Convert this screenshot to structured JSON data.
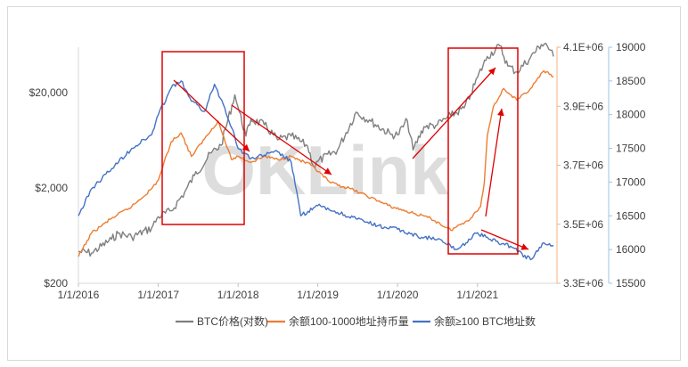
{
  "chart_data": {
    "type": "line",
    "x_ticks": [
      "1/1/2016",
      "1/1/2017",
      "1/1/2018",
      "1/1/2019",
      "1/1/2020",
      "1/1/2021"
    ],
    "axes": {
      "price": {
        "side": "left",
        "scale": "log",
        "range": [
          200,
          60000
        ],
        "tick_labels": [
          "$200",
          "$2,000",
          "$20,000"
        ]
      },
      "holdings": {
        "side": "right-inner",
        "range": [
          3300000,
          4100000
        ],
        "color": "#f4b183",
        "tick_labels": [
          "3.3E+06",
          "3.5E+06",
          "3.7E+06",
          "3.9E+06",
          "4.1E+06"
        ]
      },
      "address_count": {
        "side": "right-outer",
        "range": [
          15500,
          19000
        ],
        "color": "#9dc3e6",
        "tick_labels": [
          "15500",
          "16000",
          "16500",
          "17000",
          "17500",
          "18000",
          "18500",
          "19000"
        ]
      }
    },
    "series": [
      {
        "name": "BTC价格(对数)",
        "axis": "price",
        "color": "#7f7f7f",
        "points": [
          [
            "2016-01-01",
            430
          ],
          [
            "2016-03-01",
            415
          ],
          [
            "2016-06-01",
            580
          ],
          [
            "2016-07-01",
            670
          ],
          [
            "2016-09-01",
            610
          ],
          [
            "2016-12-01",
            760
          ],
          [
            "2017-01-01",
            1000
          ],
          [
            "2017-03-01",
            1150
          ],
          [
            "2017-05-01",
            1800
          ],
          [
            "2017-06-15",
            2700
          ],
          [
            "2017-09-01",
            4700
          ],
          [
            "2017-10-15",
            5600
          ],
          [
            "2017-12-17",
            19000
          ],
          [
            "2018-01-01",
            14000
          ],
          [
            "2018-02-06",
            7000
          ],
          [
            "2018-03-01",
            10500
          ],
          [
            "2018-05-01",
            9200
          ],
          [
            "2018-07-01",
            6400
          ],
          [
            "2018-09-01",
            7000
          ],
          [
            "2018-11-15",
            5500
          ],
          [
            "2018-12-15",
            3300
          ],
          [
            "2019-01-01",
            3800
          ],
          [
            "2019-04-01",
            5000
          ],
          [
            "2019-06-26",
            12500
          ],
          [
            "2019-09-01",
            10000
          ],
          [
            "2019-12-01",
            7300
          ],
          [
            "2020-01-01",
            7200
          ],
          [
            "2020-02-15",
            10200
          ],
          [
            "2020-03-12",
            5000
          ],
          [
            "2020-05-01",
            8800
          ],
          [
            "2020-07-01",
            9200
          ],
          [
            "2020-09-01",
            11500
          ],
          [
            "2020-11-01",
            13800
          ],
          [
            "2020-12-01",
            19000
          ],
          [
            "2021-01-01",
            29000
          ],
          [
            "2021-02-15",
            48000
          ],
          [
            "2021-04-14",
            62000
          ],
          [
            "2021-05-20",
            38000
          ],
          [
            "2021-07-01",
            33000
          ],
          [
            "2021-09-01",
            47000
          ],
          [
            "2021-10-20",
            64000
          ],
          [
            "2021-11-10",
            66000
          ],
          [
            "2021-12-15",
            48000
          ]
        ]
      },
      {
        "name": "余额100-1000地址持币量",
        "axis": "holdings",
        "color": "#ed7d31",
        "points": [
          [
            "2016-01-01",
            3390000
          ],
          [
            "2016-03-01",
            3470000
          ],
          [
            "2016-06-01",
            3520000
          ],
          [
            "2016-09-01",
            3560000
          ],
          [
            "2016-12-01",
            3620000
          ],
          [
            "2017-01-01",
            3650000
          ],
          [
            "2017-03-01",
            3780000
          ],
          [
            "2017-04-15",
            3810000
          ],
          [
            "2017-06-01",
            3730000
          ],
          [
            "2017-08-01",
            3790000
          ],
          [
            "2017-10-01",
            3850000
          ],
          [
            "2017-12-01",
            3720000
          ],
          [
            "2018-01-01",
            3730000
          ],
          [
            "2018-03-01",
            3710000
          ],
          [
            "2018-05-01",
            3730000
          ],
          [
            "2018-07-01",
            3720000
          ],
          [
            "2018-09-01",
            3730000
          ],
          [
            "2018-12-01",
            3700000
          ],
          [
            "2019-03-01",
            3640000
          ],
          [
            "2019-06-01",
            3620000
          ],
          [
            "2019-09-01",
            3590000
          ],
          [
            "2019-12-01",
            3560000
          ],
          [
            "2020-03-01",
            3540000
          ],
          [
            "2020-06-01",
            3520000
          ],
          [
            "2020-09-01",
            3480000
          ],
          [
            "2020-12-01",
            3520000
          ],
          [
            "2021-01-15",
            3560000
          ],
          [
            "2021-02-01",
            3640000
          ],
          [
            "2021-02-15",
            3800000
          ],
          [
            "2021-03-15",
            3900000
          ],
          [
            "2021-05-01",
            3960000
          ],
          [
            "2021-07-01",
            3920000
          ],
          [
            "2021-09-01",
            3960000
          ],
          [
            "2021-11-01",
            4020000
          ],
          [
            "2021-12-15",
            4000000
          ]
        ]
      },
      {
        "name": "余额≥100 BTC地址数",
        "axis": "address_count",
        "color": "#4472c4",
        "points": [
          [
            "2016-01-01",
            16500
          ],
          [
            "2016-03-01",
            16900
          ],
          [
            "2016-06-01",
            17200
          ],
          [
            "2016-09-01",
            17500
          ],
          [
            "2016-12-01",
            17700
          ],
          [
            "2017-01-01",
            18000
          ],
          [
            "2017-03-01",
            18400
          ],
          [
            "2017-04-15",
            18500
          ],
          [
            "2017-06-01",
            18200
          ],
          [
            "2017-08-01",
            18050
          ],
          [
            "2017-09-15",
            18450
          ],
          [
            "2017-11-01",
            18100
          ],
          [
            "2017-12-15",
            17700
          ],
          [
            "2018-01-01",
            17500
          ],
          [
            "2018-03-01",
            17350
          ],
          [
            "2018-05-01",
            17400
          ],
          [
            "2018-07-01",
            17450
          ],
          [
            "2018-09-01",
            17300
          ],
          [
            "2018-10-15",
            16500
          ],
          [
            "2019-01-01",
            16650
          ],
          [
            "2019-04-01",
            16550
          ],
          [
            "2019-07-01",
            16450
          ],
          [
            "2019-10-01",
            16350
          ],
          [
            "2020-01-01",
            16300
          ],
          [
            "2020-04-01",
            16200
          ],
          [
            "2020-07-01",
            16150
          ],
          [
            "2020-10-01",
            16000
          ],
          [
            "2021-01-01",
            16250
          ],
          [
            "2021-03-01",
            16150
          ],
          [
            "2021-06-01",
            16050
          ],
          [
            "2021-09-01",
            15850
          ],
          [
            "2021-11-01",
            16100
          ],
          [
            "2021-12-15",
            16050
          ]
        ]
      }
    ],
    "watermark": "OKLink"
  }
}
